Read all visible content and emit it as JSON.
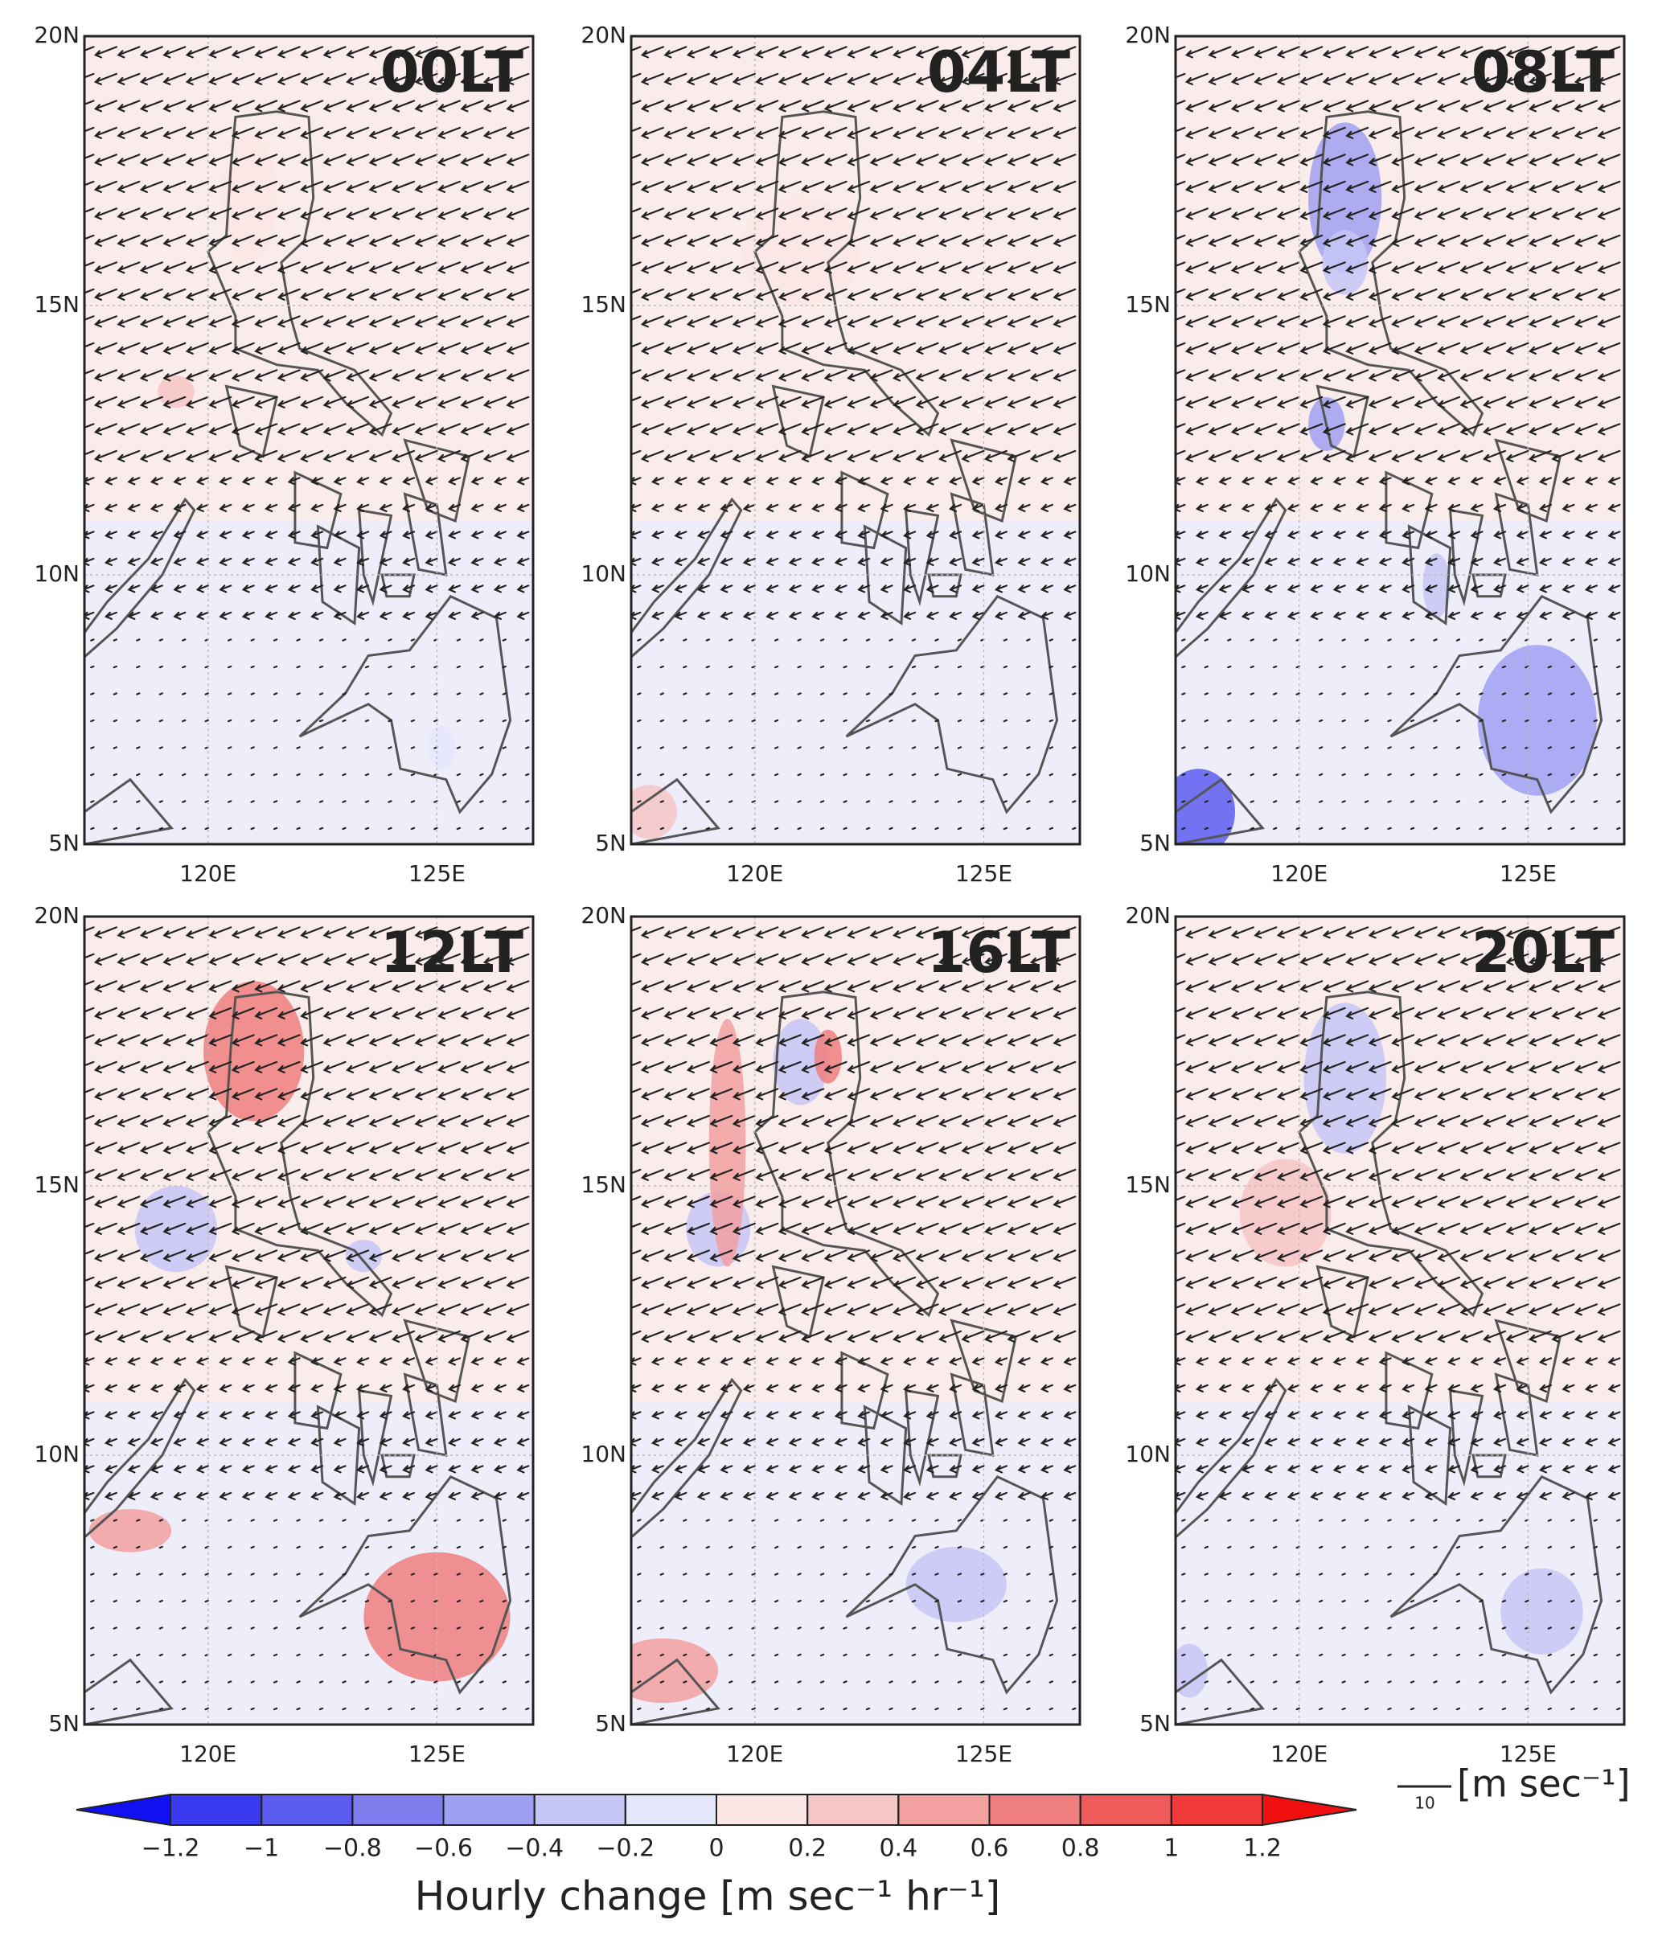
{
  "panels": [
    {
      "title": "00LT"
    },
    {
      "title": "04LT"
    },
    {
      "title": "08LT"
    },
    {
      "title": "12LT"
    },
    {
      "title": "16LT"
    },
    {
      "title": "20LT"
    }
  ],
  "latlim": [
    5,
    20
  ],
  "lonlim": [
    117.3,
    127.1
  ],
  "lat_ticks": [
    {
      "value": 5,
      "label": "5N"
    },
    {
      "value": 10,
      "label": "10N"
    },
    {
      "value": 15,
      "label": "15N"
    },
    {
      "value": 20,
      "label": "20N"
    }
  ],
  "lon_ticks": [
    {
      "value": 120,
      "label": "120E"
    },
    {
      "value": 125,
      "label": "125E"
    }
  ],
  "colorbar": {
    "label": "Hourly change [m sec⁻¹ hr⁻¹]",
    "ticks": [
      {
        "value": -1.2,
        "label": "−1.2"
      },
      {
        "value": -1,
        "label": "−1"
      },
      {
        "value": -0.8,
        "label": "−0.8"
      },
      {
        "value": -0.6,
        "label": "−0.6"
      },
      {
        "value": -0.4,
        "label": "−0.4"
      },
      {
        "value": -0.2,
        "label": "−0.2"
      },
      0,
      0.2,
      0.4,
      0.6,
      0.8,
      1,
      1.2
    ],
    "colors": [
      "#1010f0",
      "#3a3af0",
      "#5c5cf0",
      "#7e7eef",
      "#a0a0f2",
      "#c6c6f6",
      "#e6e6fb",
      "#fbe6e6",
      "#f6c6c6",
      "#f2a0a0",
      "#ef7e7e",
      "#f05c5c",
      "#f03a3a",
      "#f01010"
    ]
  },
  "vector_key": {
    "value": 10,
    "unit": "[m sec⁻¹]"
  }
}
